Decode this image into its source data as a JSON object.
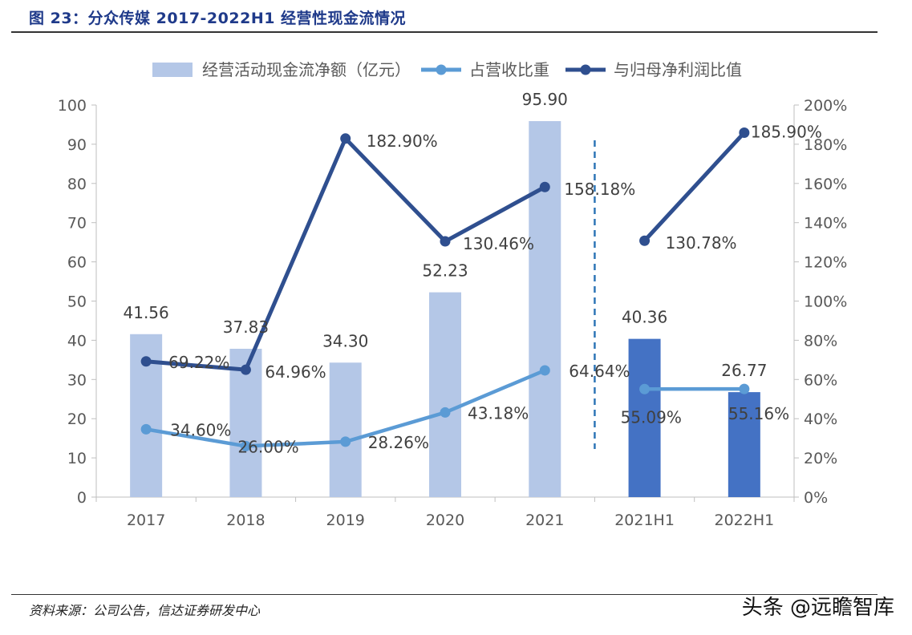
{
  "figure_title": "图 23：分众传媒 2017-2022H1 经营性现金流情况",
  "source": "资料来源：公司公告，信达证券研发中心",
  "watermark": "头条 @远瞻智库",
  "chart_data": {
    "type": "bar",
    "categories": [
      "2017",
      "2018",
      "2019",
      "2020",
      "2021",
      "2021H1",
      "2022H1"
    ],
    "series": [
      {
        "name": "经营活动现金流净额（亿元）",
        "type": "bar",
        "axis": "left",
        "values": [
          41.56,
          37.83,
          34.3,
          52.23,
          95.9,
          40.36,
          26.77
        ],
        "labels": [
          "41.56",
          "37.83",
          "34.30",
          "52.23",
          "95.90",
          "40.36",
          "26.77"
        ],
        "colors": [
          "#b4c7e7",
          "#b4c7e7",
          "#b4c7e7",
          "#b4c7e7",
          "#b4c7e7",
          "#4472c4",
          "#4472c4"
        ]
      },
      {
        "name": "占营收比重",
        "type": "line",
        "axis": "right",
        "color": "#5b9bd5",
        "segments": [
          [
            0,
            4
          ],
          [
            5,
            6
          ]
        ],
        "values": [
          34.6,
          26.0,
          28.26,
          43.18,
          64.64,
          55.09,
          55.16
        ],
        "labels": [
          "34.60%",
          "26.00%",
          "28.26%",
          "43.18%",
          "64.64%",
          "55.09%",
          "55.16%"
        ]
      },
      {
        "name": "与归母净利润比值",
        "type": "line",
        "axis": "right",
        "color": "#2f4f8f",
        "segments": [
          [
            0,
            4
          ],
          [
            5,
            6
          ]
        ],
        "values": [
          69.22,
          64.96,
          182.9,
          130.46,
          158.18,
          130.78,
          185.9
        ],
        "labels": [
          "69.22%",
          "64.96%",
          "182.90%",
          "130.46%",
          "158.18%",
          "130.78%",
          "185.90%"
        ]
      }
    ],
    "y_left": {
      "range": [
        0,
        100
      ],
      "ticks": [
        "0",
        "10",
        "20",
        "30",
        "40",
        "50",
        "60",
        "70",
        "80",
        "90",
        "100"
      ]
    },
    "y_right": {
      "range": [
        0,
        200
      ],
      "ticks": [
        "0%",
        "20%",
        "40%",
        "60%",
        "80%",
        "100%",
        "120%",
        "140%",
        "160%",
        "180%",
        "200%"
      ]
    },
    "grid": false,
    "legend": "top",
    "divider": "dashed vertical line between 2021 and 2021H1"
  }
}
